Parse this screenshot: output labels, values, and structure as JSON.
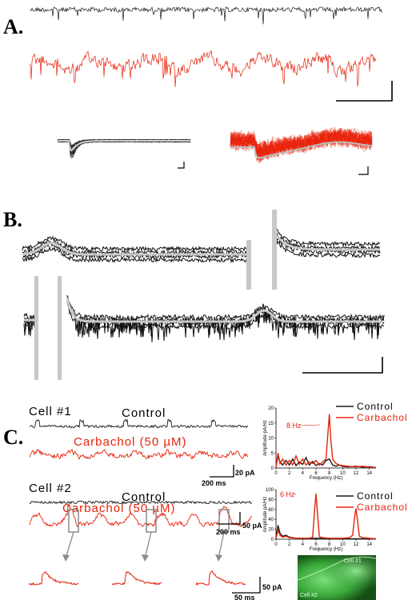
{
  "panels": {
    "a_label": "A.",
    "b_label": "B.",
    "c_label": "C."
  },
  "colors": {
    "control": "#1a1a1a",
    "carbachol": "#e8220a",
    "average": "#c8c8c8",
    "fluorescence": "#2fa32f"
  },
  "panel_c": {
    "cell1": {
      "label": "Cell #1",
      "control_label": "Control",
      "carbachol_label": "Carbachol (50 µM)",
      "scale_current": "20 pA",
      "scale_time": "200 ms"
    },
    "cell2": {
      "label": "Cell #2",
      "control_label": "Control",
      "carbachol_label": "Carbachol (50 µM)",
      "scale_current": "50 pA",
      "scale_time": "200 ms"
    },
    "zoom_scale_current": "50 pA",
    "zoom_scale_time": "50 ms",
    "image_labels": [
      "Cell #1",
      "Cell #2"
    ]
  },
  "chart_data": [
    {
      "type": "line",
      "xlabel": "Frequency (Hz)",
      "ylabel": "Amplitude pA/Hz",
      "xlim": [
        0,
        15
      ],
      "ylim": [
        0,
        20
      ],
      "x_ticks": [
        "0",
        "2",
        "4",
        "6",
        "8",
        "10",
        "12",
        "14"
      ],
      "y_ticks": [
        "0",
        "5",
        "10",
        "15",
        "20"
      ],
      "legend": [
        "Control",
        "Carbachol"
      ],
      "legend_position": "top-right",
      "annotation": "8 Hz",
      "series": [
        {
          "name": "Control",
          "color": "#1a1a1a",
          "x": [
            0,
            0.3,
            0.6,
            1,
            1.5,
            2,
            2.5,
            3,
            3.5,
            4,
            4.5,
            5,
            5.5,
            6,
            6.5,
            7,
            7.5,
            8,
            8.5,
            9,
            9.5,
            10,
            11,
            12,
            13,
            14,
            15
          ],
          "values": [
            0.5,
            4,
            2,
            1,
            2.5,
            1,
            3,
            0.8,
            2,
            1.2,
            3.5,
            1,
            2.2,
            0.8,
            1.5,
            1,
            2.5,
            3,
            1,
            0.6,
            1,
            0.5,
            0.4,
            0.6,
            0.3,
            0.4,
            0.2
          ]
        },
        {
          "name": "Carbachol",
          "color": "#e8220a",
          "x": [
            0,
            0.3,
            0.6,
            1,
            1.5,
            2,
            2.5,
            3,
            3.5,
            4,
            4.5,
            5,
            5.5,
            6,
            6.5,
            7,
            7.5,
            7.8,
            8,
            8.2,
            8.5,
            9,
            9.5,
            10,
            11,
            12,
            13,
            14,
            15
          ],
          "values": [
            0.3,
            5,
            1.5,
            3,
            1,
            2.5,
            1,
            4,
            1.2,
            3,
            1,
            2,
            1.5,
            2.5,
            1,
            2,
            3,
            12,
            18,
            10,
            3,
            1.5,
            1,
            0.8,
            0.5,
            0.4,
            0.6,
            0.3,
            0.2
          ]
        }
      ]
    },
    {
      "type": "line",
      "xlabel": "Frequency (Hz)",
      "ylabel": "Amplitude pA/Hz",
      "xlim": [
        0,
        15
      ],
      "ylim": [
        0,
        100
      ],
      "x_ticks": [
        "0",
        "2",
        "4",
        "6",
        "8",
        "10",
        "12",
        "14"
      ],
      "y_ticks": [
        "0",
        "20",
        "40",
        "60",
        "80",
        "100"
      ],
      "legend": [
        "Control",
        "Carbachol"
      ],
      "legend_position": "top-right",
      "annotation": "6 Hz",
      "series": [
        {
          "name": "Control",
          "color": "#1a1a1a",
          "x": [
            0,
            0.3,
            0.6,
            1,
            1.5,
            2,
            2.5,
            3,
            4,
            5,
            6,
            7,
            8,
            9,
            10,
            11,
            12,
            13,
            14,
            15
          ],
          "values": [
            2,
            28,
            12,
            6,
            8,
            4,
            3,
            2,
            2,
            1.5,
            2,
            1.5,
            1,
            1,
            1,
            1,
            1,
            0.8,
            0.8,
            0.5
          ]
        },
        {
          "name": "Carbachol",
          "color": "#e8220a",
          "x": [
            0,
            0.3,
            0.6,
            1,
            1.5,
            2,
            3,
            4,
            5,
            5.5,
            5.8,
            6,
            6.2,
            6.5,
            7,
            8,
            9,
            10,
            11,
            11.5,
            11.8,
            12,
            12.2,
            12.5,
            13,
            14,
            15
          ],
          "values": [
            1,
            18,
            8,
            4,
            6,
            3,
            2,
            2,
            2,
            4,
            60,
            92,
            55,
            5,
            3,
            2,
            2,
            2,
            3,
            8,
            45,
            62,
            40,
            6,
            3,
            2,
            1
          ]
        }
      ]
    }
  ]
}
